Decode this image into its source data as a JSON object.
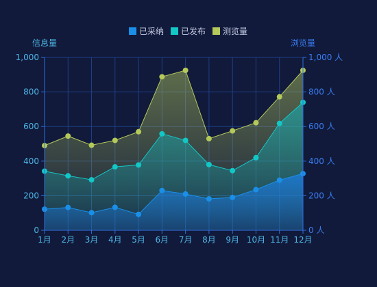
{
  "chart_data": {
    "type": "area",
    "categories": [
      "1月",
      "2月",
      "3月",
      "4月",
      "5月",
      "6月",
      "7月",
      "8月",
      "9月",
      "10月",
      "11月",
      "12月"
    ],
    "series": [
      {
        "name": "已采纳",
        "color": "#1a8fe8",
        "values": [
          122,
          132,
          102,
          133,
          92,
          230,
          210,
          182,
          190,
          235,
          290,
          328
        ]
      },
      {
        "name": "已发布",
        "color": "#13c7c7",
        "values": [
          342,
          315,
          292,
          367,
          378,
          558,
          520,
          380,
          345,
          420,
          618,
          740
        ]
      },
      {
        "name": "测览量",
        "color": "#b4c95a",
        "values": [
          490,
          545,
          492,
          520,
          570,
          888,
          925,
          530,
          575,
          622,
          772,
          925
        ]
      }
    ],
    "ylabel_left": "信息量",
    "ylabel_right": "浏览量",
    "ylim": [
      0,
      1000
    ],
    "y_ticks_left": [
      "0",
      "200",
      "400",
      "600",
      "800",
      "1,000"
    ],
    "y_ticks_right": [
      "0 人",
      "200 人",
      "400 人",
      "600 人",
      "800 人",
      "1,000 人"
    ],
    "legend_position": "top-center",
    "grid": true,
    "colors": {
      "background": "#111a3b",
      "grid": "#1f3f86",
      "axis_left": "#4fb6e6",
      "axis_right": "#3a7df0"
    }
  }
}
